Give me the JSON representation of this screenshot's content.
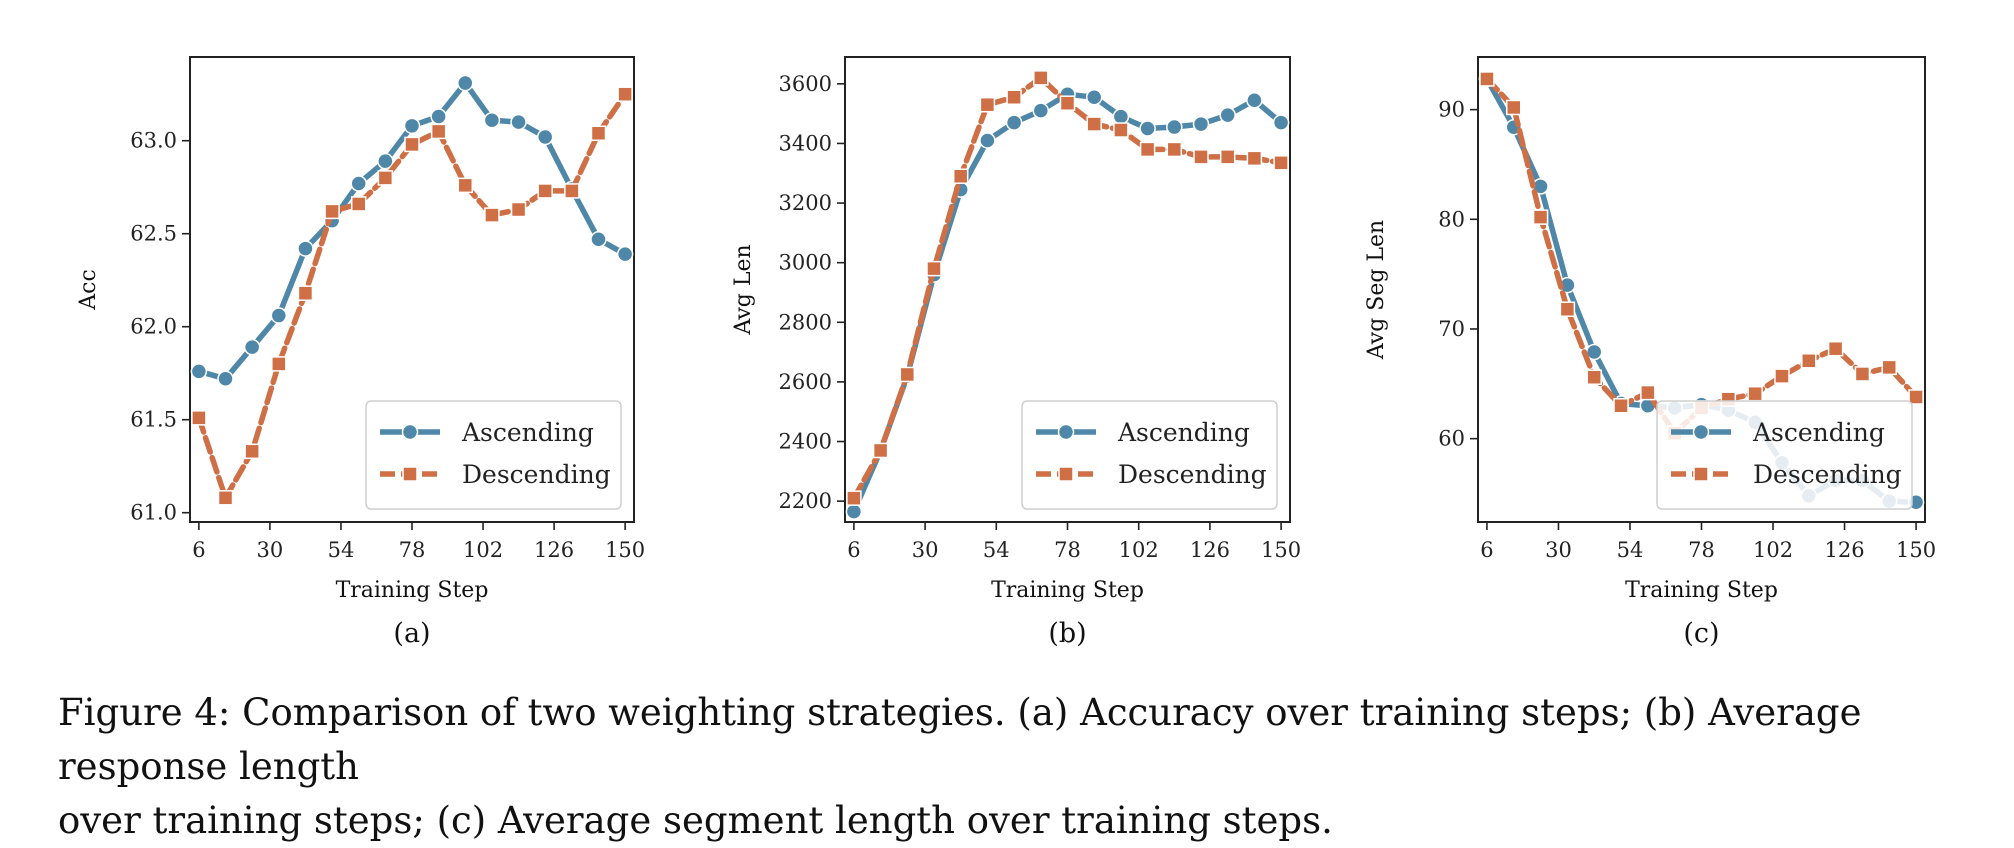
{
  "colors": {
    "ascending": "#4f87a8",
    "descending": "#cf6f45"
  },
  "chart_data": [
    {
      "type": "line",
      "sub_label": "(a)",
      "xlabel": "Training Step",
      "ylabel": "Acc",
      "x": [
        6,
        12,
        18,
        24,
        30,
        36,
        42,
        48,
        54,
        60,
        66,
        72,
        78,
        84,
        90,
        96,
        102,
        108,
        114,
        120,
        126,
        132,
        138,
        144,
        150
      ],
      "xlim": [
        3,
        153
      ],
      "ylim": [
        60.95,
        63.45
      ],
      "xticks": [
        6,
        30,
        54,
        78,
        102,
        126,
        150
      ],
      "xtick_labels": [
        "6",
        "30",
        "54",
        "78",
        "102",
        "126",
        "150"
      ],
      "yticks": [
        61.0,
        61.5,
        62.0,
        62.5,
        63.0
      ],
      "ytick_labels": [
        "61.0",
        "61.5",
        "62.0",
        "62.5",
        "63.0"
      ],
      "legend_position": "lower-right",
      "series": [
        {
          "name": "Ascending",
          "marker": "circle",
          "points": [
            [
              6,
              61.76
            ],
            [
              15,
              61.72
            ],
            [
              24,
              61.89
            ],
            [
              33,
              62.06
            ],
            [
              42,
              62.42
            ],
            [
              51,
              62.57
            ],
            [
              60,
              62.77
            ],
            [
              69,
              62.89
            ],
            [
              78,
              63.08
            ],
            [
              87,
              63.13
            ],
            [
              96,
              63.31
            ],
            [
              105,
              63.11
            ],
            [
              114,
              63.1
            ],
            [
              123,
              63.02
            ],
            [
              132,
              62.74
            ],
            [
              141,
              62.47
            ],
            [
              150,
              62.39
            ]
          ]
        },
        {
          "name": "Descending",
          "marker": "square",
          "points": [
            [
              6,
              61.51
            ],
            [
              15,
              61.08
            ],
            [
              24,
              61.33
            ],
            [
              33,
              61.8
            ],
            [
              42,
              62.18
            ],
            [
              51,
              62.62
            ],
            [
              60,
              62.66
            ],
            [
              69,
              62.8
            ],
            [
              78,
              62.98
            ],
            [
              87,
              63.05
            ],
            [
              96,
              62.76
            ],
            [
              105,
              62.6
            ],
            [
              114,
              62.63
            ],
            [
              123,
              62.73
            ],
            [
              132,
              62.73
            ],
            [
              141,
              63.04
            ],
            [
              150,
              63.25
            ]
          ]
        }
      ]
    },
    {
      "type": "line",
      "sub_label": "(b)",
      "xlabel": "Training Step",
      "ylabel": "Avg Len",
      "xlim": [
        3,
        153
      ],
      "ylim": [
        2130,
        3690
      ],
      "xticks": [
        6,
        30,
        54,
        78,
        102,
        126,
        150
      ],
      "xtick_labels": [
        "6",
        "30",
        "54",
        "78",
        "102",
        "126",
        "150"
      ],
      "yticks": [
        2200,
        2400,
        2600,
        2800,
        3000,
        3200,
        3400,
        3600
      ],
      "ytick_labels": [
        "2200",
        "2400",
        "2600",
        "2800",
        "3000",
        "3200",
        "3400",
        "3600"
      ],
      "legend_position": "lower-right",
      "series": [
        {
          "name": "Ascending",
          "marker": "circle",
          "points": [
            [
              6,
              2165
            ],
            [
              15,
              2370
            ],
            [
              24,
              2620
            ],
            [
              33,
              2960
            ],
            [
              42,
              3245
            ],
            [
              51,
              3410
            ],
            [
              60,
              3470
            ],
            [
              69,
              3510
            ],
            [
              78,
              3565
            ],
            [
              87,
              3555
            ],
            [
              96,
              3490
            ],
            [
              105,
              3450
            ],
            [
              114,
              3455
            ],
            [
              123,
              3465
            ],
            [
              132,
              3495
            ],
            [
              141,
              3545
            ],
            [
              150,
              3470
            ]
          ]
        },
        {
          "name": "Descending",
          "marker": "square",
          "points": [
            [
              6,
              2210
            ],
            [
              15,
              2370
            ],
            [
              24,
              2625
            ],
            [
              33,
              2980
            ],
            [
              42,
              3290
            ],
            [
              51,
              3530
            ],
            [
              60,
              3555
            ],
            [
              69,
              3620
            ],
            [
              78,
              3535
            ],
            [
              87,
              3465
            ],
            [
              96,
              3445
            ],
            [
              105,
              3380
            ],
            [
              114,
              3380
            ],
            [
              123,
              3355
            ],
            [
              132,
              3355
            ],
            [
              141,
              3350
            ],
            [
              150,
              3335
            ]
          ]
        }
      ]
    },
    {
      "type": "line",
      "sub_label": "(c)",
      "xlabel": "Training Step",
      "ylabel": "Avg Seg Len",
      "xlim": [
        3,
        153
      ],
      "ylim": [
        52.4,
        94.8
      ],
      "xticks": [
        6,
        30,
        54,
        78,
        102,
        126,
        150
      ],
      "xtick_labels": [
        "6",
        "30",
        "54",
        "78",
        "102",
        "126",
        "150"
      ],
      "yticks": [
        60,
        70,
        80,
        90
      ],
      "ytick_labels": [
        "60",
        "70",
        "80",
        "90"
      ],
      "legend_position": "lower-right",
      "series": [
        {
          "name": "Ascending",
          "marker": "circle",
          "points": [
            [
              6,
              92.8
            ],
            [
              15,
              88.4
            ],
            [
              24,
              83.0
            ],
            [
              33,
              74.0
            ],
            [
              42,
              67.9
            ],
            [
              51,
              63.2
            ],
            [
              60,
              63.0
            ],
            [
              69,
              62.8
            ],
            [
              78,
              63.1
            ],
            [
              87,
              62.6
            ],
            [
              96,
              61.5
            ],
            [
              105,
              57.8
            ],
            [
              114,
              54.8
            ],
            [
              123,
              56.2
            ],
            [
              132,
              56.2
            ],
            [
              141,
              54.3
            ],
            [
              150,
              54.2
            ]
          ]
        },
        {
          "name": "Descending",
          "marker": "square",
          "points": [
            [
              6,
              92.8
            ],
            [
              15,
              90.2
            ],
            [
              24,
              80.2
            ],
            [
              33,
              71.8
            ],
            [
              42,
              65.6
            ],
            [
              51,
              63.0
            ],
            [
              60,
              64.2
            ],
            [
              69,
              60.5
            ],
            [
              78,
              62.8
            ],
            [
              87,
              63.6
            ],
            [
              96,
              64.1
            ],
            [
              105,
              65.7
            ],
            [
              114,
              67.1
            ],
            [
              123,
              68.2
            ],
            [
              132,
              65.9
            ],
            [
              141,
              66.5
            ],
            [
              150,
              63.8
            ]
          ]
        }
      ]
    }
  ],
  "caption": {
    "line1": "Figure 4: Comparison of two weighting strategies. (a) Accuracy over training steps; (b) Average response length",
    "line2": "over training steps; (c) Average segment length over training steps."
  }
}
